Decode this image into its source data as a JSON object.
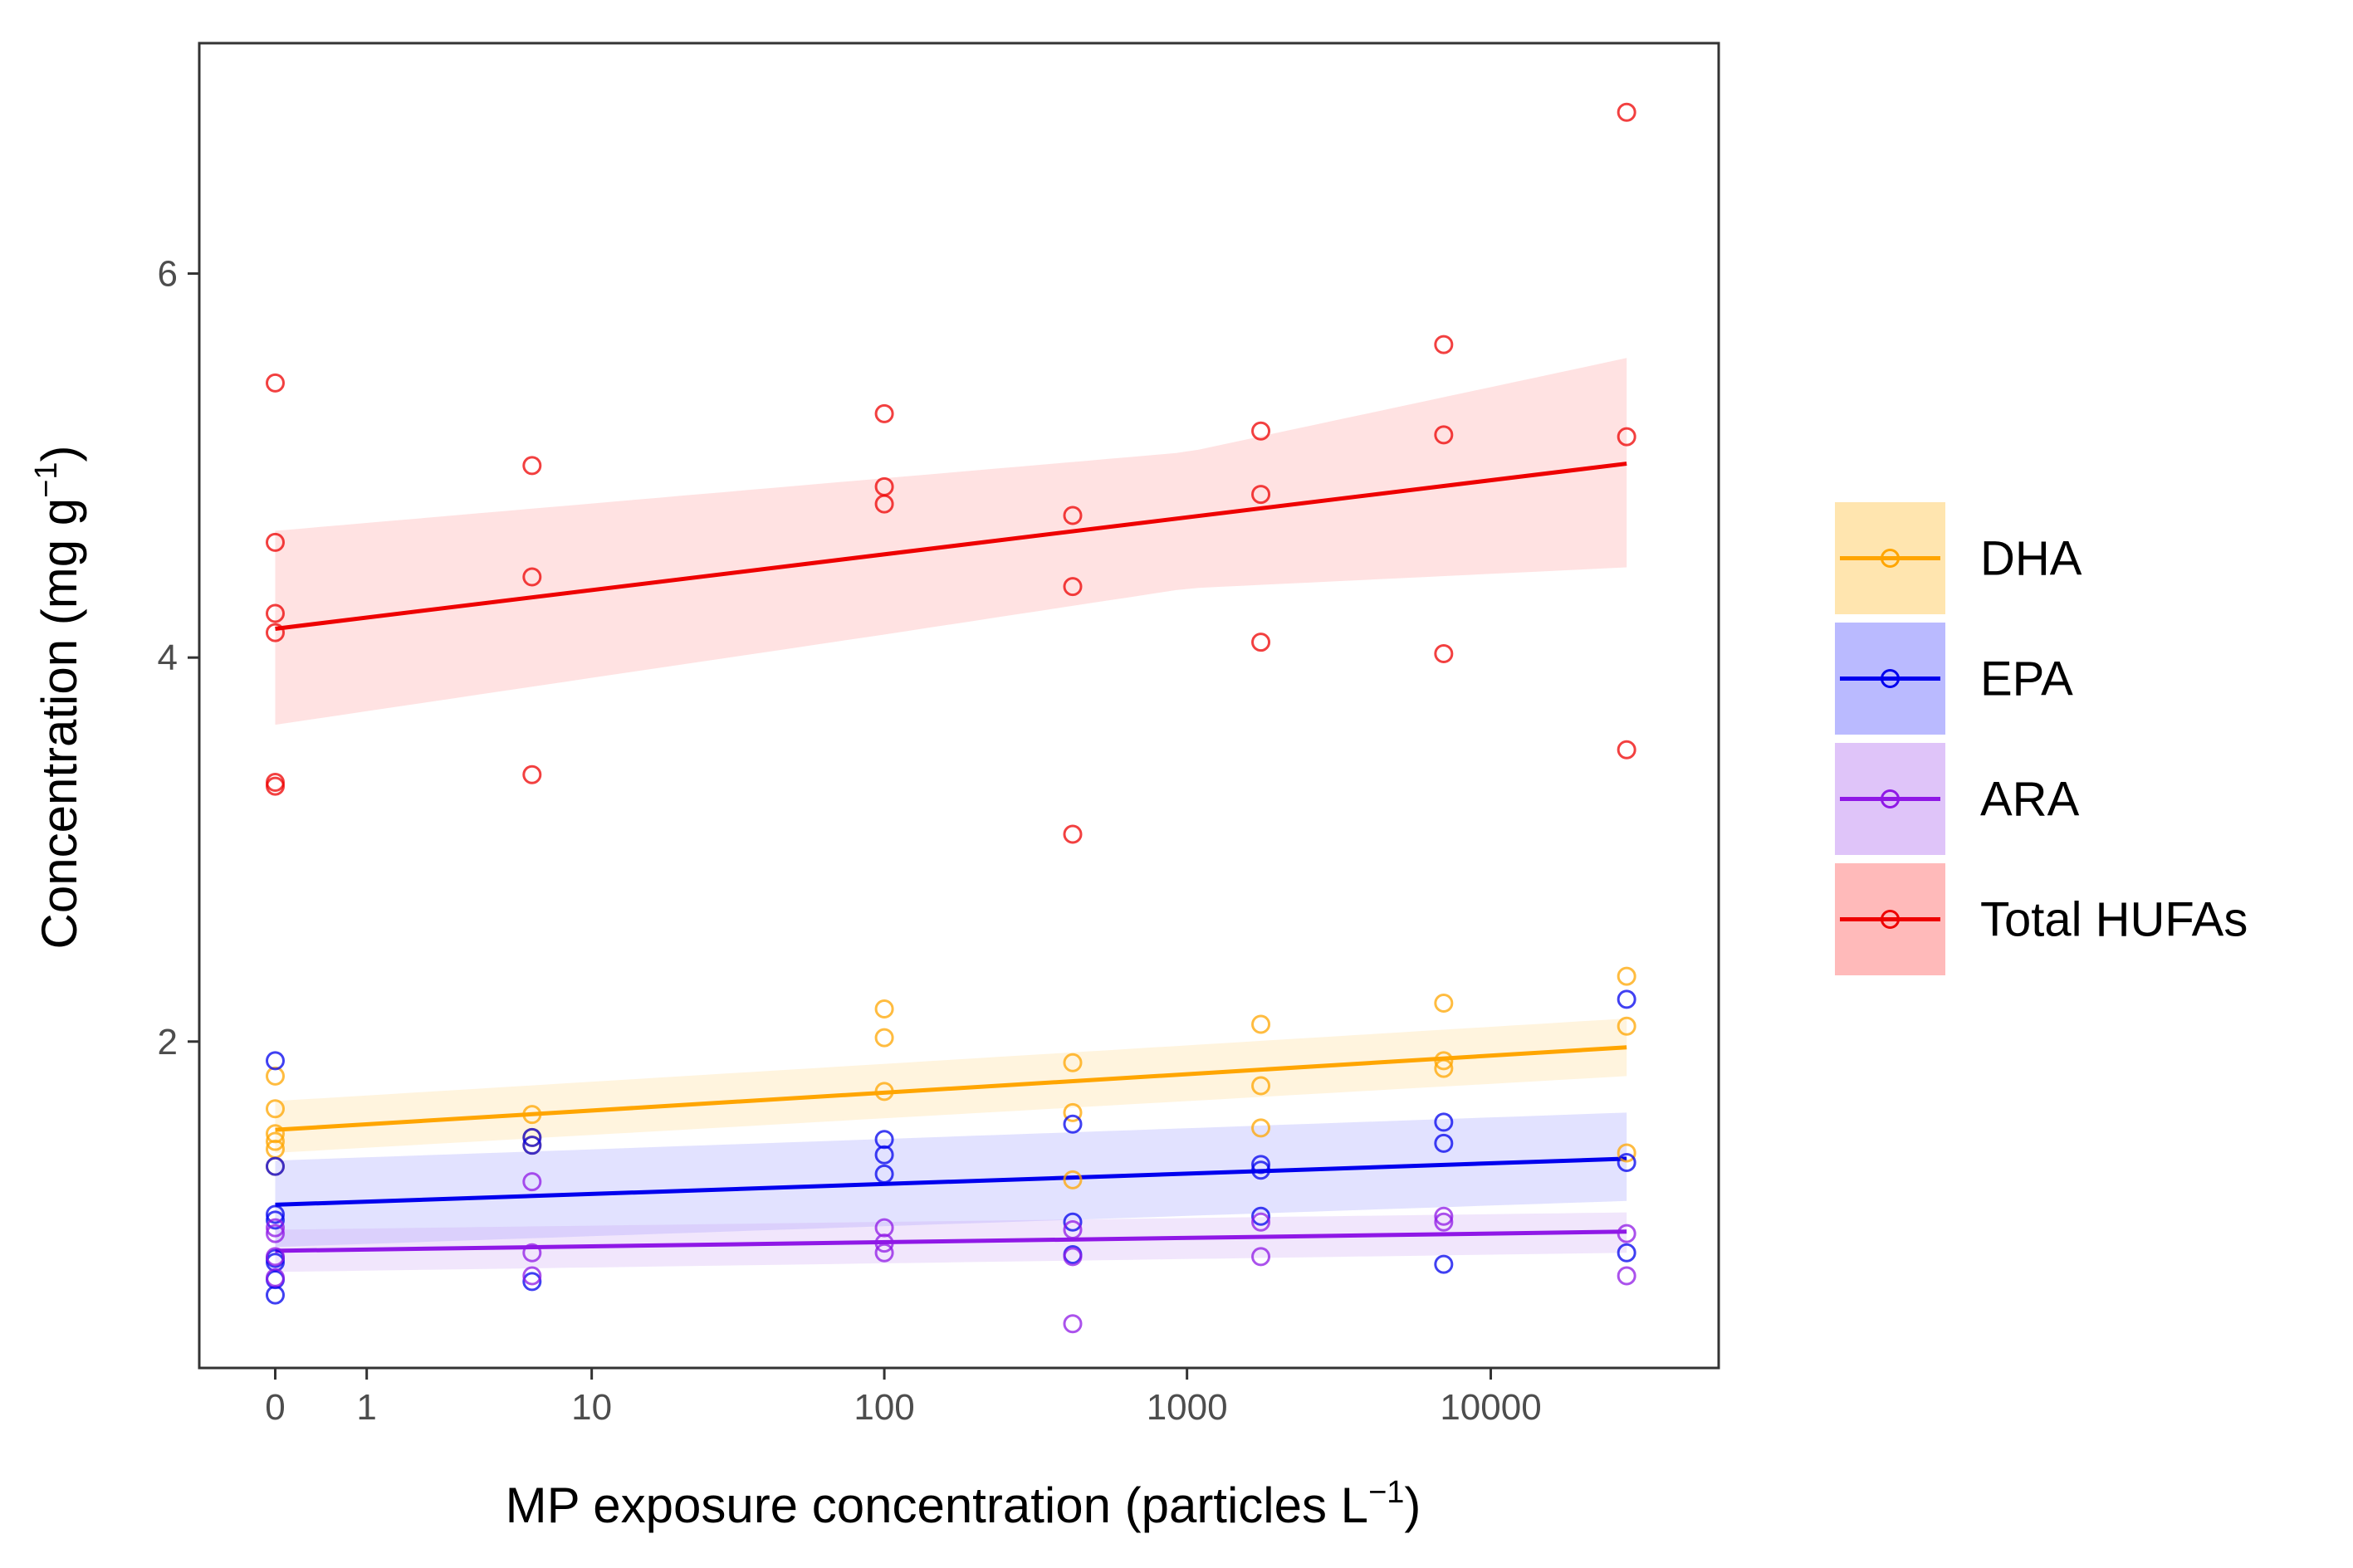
{
  "chart_data": {
    "type": "scatter",
    "xlabel": {
      "main": "MP exposure concentration (particles L",
      "sup": "−1",
      "close": ")"
    },
    "ylabel": {
      "main": "Concentration (mg  g",
      "sup": "−1",
      "close": ")"
    },
    "x_scale": "pseudo-log",
    "x_ticks": [
      0,
      1,
      10,
      100,
      1000,
      10000
    ],
    "x_tick_labels": [
      "0",
      "1",
      "10",
      "100",
      "1000",
      "10000"
    ],
    "xlim": [
      -0.25,
      4.75
    ],
    "y_ticks": [
      2,
      4,
      6
    ],
    "y_tick_labels": [
      "2",
      "4",
      "6"
    ],
    "ylim": [
      0.3,
      7.2
    ],
    "grid": false,
    "legend_position": "right",
    "series": [
      {
        "name": "DHA",
        "color": "#FFA500",
        "ribbon_color": "#FFD37A",
        "points": [
          [
            0,
            1.82
          ],
          [
            0,
            1.65
          ],
          [
            0,
            1.52
          ],
          [
            0,
            1.48
          ],
          [
            0,
            1.44
          ],
          [
            0,
            1.35
          ],
          [
            6,
            1.62
          ],
          [
            6,
            1.5
          ],
          [
            6,
            1.46
          ],
          [
            100,
            2.17
          ],
          [
            100,
            2.02
          ],
          [
            100,
            1.74
          ],
          [
            420,
            1.89
          ],
          [
            420,
            1.63
          ],
          [
            420,
            1.28
          ],
          [
            1750,
            2.09
          ],
          [
            1750,
            1.77
          ],
          [
            1750,
            1.55
          ],
          [
            7000,
            2.2
          ],
          [
            7000,
            1.9
          ],
          [
            7000,
            1.86
          ],
          [
            28000,
            2.34
          ],
          [
            28000,
            2.08
          ],
          [
            28000,
            1.42
          ]
        ],
        "fit": {
          "start": [
            0,
            1.54
          ],
          "end": [
            28000,
            1.97
          ]
        },
        "ribbon_lower": [
          [
            0,
            1.42
          ],
          [
            28000,
            1.82
          ]
        ],
        "ribbon_upper": [
          [
            0,
            1.69
          ],
          [
            28000,
            2.12
          ]
        ]
      },
      {
        "name": "EPA",
        "color": "#0000EE",
        "ribbon_color": "#8C8CFF",
        "points": [
          [
            0,
            1.9
          ],
          [
            0,
            1.35
          ],
          [
            0,
            1.1
          ],
          [
            0,
            1.07
          ],
          [
            0,
            0.87
          ],
          [
            0,
            0.85
          ],
          [
            0,
            0.76
          ],
          [
            0,
            0.68
          ],
          [
            6,
            1.5
          ],
          [
            6,
            1.46
          ],
          [
            6,
            0.75
          ],
          [
            100,
            1.49
          ],
          [
            100,
            1.41
          ],
          [
            100,
            1.31
          ],
          [
            420,
            1.57
          ],
          [
            420,
            1.06
          ],
          [
            420,
            0.89
          ],
          [
            1750,
            1.36
          ],
          [
            1750,
            1.33
          ],
          [
            1750,
            1.09
          ],
          [
            7000,
            1.58
          ],
          [
            7000,
            1.47
          ],
          [
            7000,
            0.84
          ],
          [
            28000,
            2.22
          ],
          [
            28000,
            1.37
          ],
          [
            28000,
            0.9
          ]
        ],
        "fit": {
          "start": [
            0,
            1.15
          ],
          "end": [
            28000,
            1.39
          ]
        },
        "ribbon_lower": [
          [
            0,
            0.93
          ],
          [
            28000,
            1.17
          ]
        ],
        "ribbon_upper": [
          [
            0,
            1.38
          ],
          [
            28000,
            1.63
          ]
        ]
      },
      {
        "name": "ARA",
        "color": "#8F18E6",
        "ribbon_color": "#C99CF5",
        "points": [
          [
            0,
            1.03
          ],
          [
            0,
            1.0
          ],
          [
            0,
            0.88
          ],
          [
            0,
            0.77
          ],
          [
            6,
            1.27
          ],
          [
            6,
            0.9
          ],
          [
            6,
            0.78
          ],
          [
            100,
            1.03
          ],
          [
            100,
            0.95
          ],
          [
            100,
            0.9
          ],
          [
            420,
            1.02
          ],
          [
            420,
            0.88
          ],
          [
            420,
            0.53
          ],
          [
            1750,
            1.06
          ],
          [
            1750,
            0.88
          ],
          [
            7000,
            1.09
          ],
          [
            7000,
            1.06
          ],
          [
            28000,
            1.0
          ],
          [
            28000,
            0.78
          ]
        ],
        "fit": {
          "start": [
            0,
            0.91
          ],
          "end": [
            28000,
            1.01
          ]
        },
        "ribbon_lower": [
          [
            0,
            0.8
          ],
          [
            28000,
            0.9
          ]
        ],
        "ribbon_upper": [
          [
            0,
            1.02
          ],
          [
            28000,
            1.11
          ]
        ]
      },
      {
        "name": "Total HUFAs",
        "color": "#EE0000",
        "ribbon_color": "#FF8C8C",
        "points": [
          [
            0,
            5.43
          ],
          [
            0,
            4.6
          ],
          [
            0,
            4.23
          ],
          [
            0,
            4.13
          ],
          [
            0,
            3.35
          ],
          [
            0,
            3.33
          ],
          [
            6,
            5.0
          ],
          [
            6,
            4.42
          ],
          [
            6,
            3.39
          ],
          [
            100,
            5.27
          ],
          [
            100,
            4.89
          ],
          [
            100,
            4.8
          ],
          [
            420,
            4.74
          ],
          [
            420,
            4.37
          ],
          [
            420,
            3.08
          ],
          [
            1750,
            5.18
          ],
          [
            1750,
            4.85
          ],
          [
            1750,
            4.08
          ],
          [
            7000,
            5.63
          ],
          [
            7000,
            5.16
          ],
          [
            7000,
            4.02
          ],
          [
            28000,
            6.84
          ],
          [
            28000,
            5.15
          ],
          [
            28000,
            3.52
          ]
        ],
        "fit": {
          "start": [
            0,
            4.15
          ],
          "end": [
            28000,
            5.01
          ]
        },
        "ribbon_lower": [
          [
            0,
            3.65
          ],
          [
            100,
            4.12
          ],
          [
            1000,
            4.36
          ],
          [
            28000,
            4.47
          ]
        ],
        "ribbon_upper": [
          [
            0,
            4.66
          ],
          [
            1000,
            5.07
          ],
          [
            28000,
            5.56
          ]
        ]
      }
    ]
  }
}
